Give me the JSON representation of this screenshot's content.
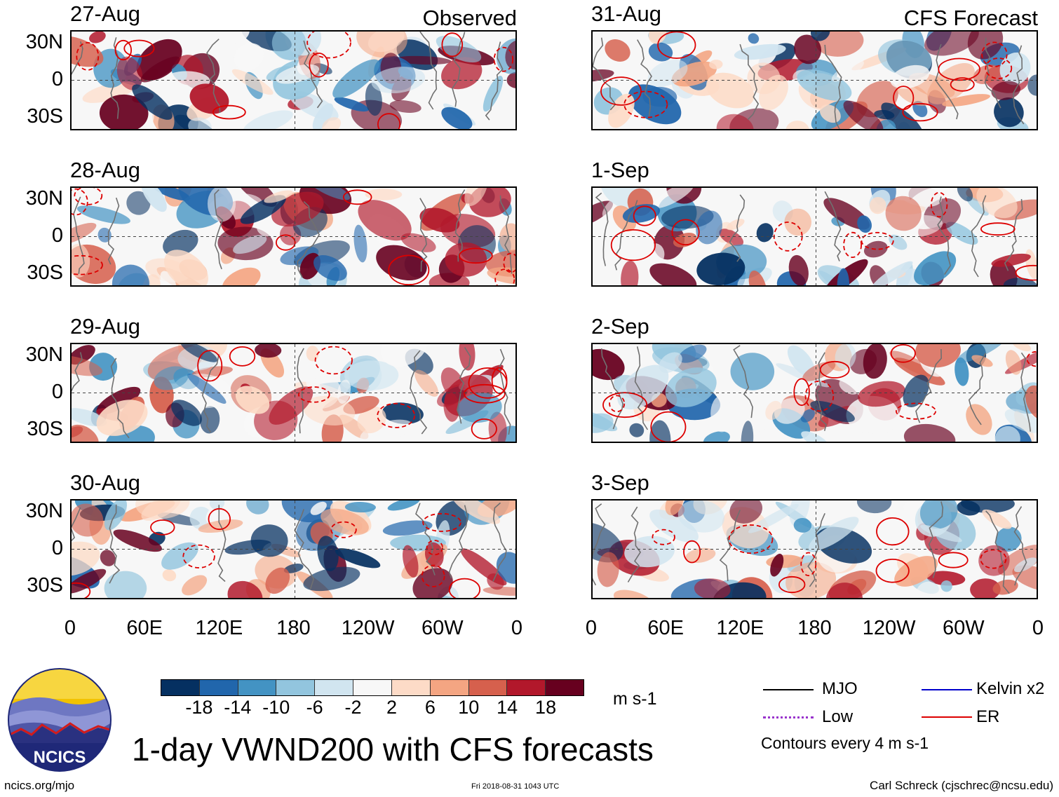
{
  "title": "1-day VWND200 with CFS forecasts",
  "units": "m s-1",
  "footer": {
    "url": "ncics.org/mjo",
    "timestamp": "Fri 2018-08-31 1043 UTC",
    "credit": "Carl Schreck (cjschrec@ncsu.edu)"
  },
  "logo": {
    "text": "NCICS"
  },
  "latitude_labels": [
    "30N",
    "0",
    "30S"
  ],
  "longitude_labels": [
    "0",
    "60E",
    "120E",
    "180",
    "120W",
    "60W",
    "0"
  ],
  "observed": {
    "label": "Observed",
    "dates": [
      "27-Aug",
      "28-Aug",
      "29-Aug",
      "30-Aug"
    ]
  },
  "forecast": {
    "label": "CFS Forecast",
    "dates": [
      "31-Aug",
      "1-Sep",
      "2-Sep",
      "3-Sep"
    ]
  },
  "colorbar": {
    "ticks": [
      "-18",
      "-14",
      "-10",
      "-6",
      "-2",
      "2",
      "6",
      "10",
      "14",
      "18"
    ],
    "colors": [
      "#053061",
      "#2166ac",
      "#4393c3",
      "#92c5de",
      "#d1e5f0",
      "#f7f7f7",
      "#fddbc7",
      "#f4a582",
      "#d6604d",
      "#b2182b",
      "#67001f"
    ]
  },
  "legend": {
    "items": [
      {
        "label": "MJO",
        "color": "#000000",
        "style": "solid"
      },
      {
        "label": "Kelvin x2",
        "color": "#0000cc",
        "style": "solid"
      },
      {
        "label": "Low",
        "color": "#9933cc",
        "style": "dotted"
      },
      {
        "label": "ER",
        "color": "#dd0000",
        "style": "solid"
      }
    ],
    "contour_note": "Contours every 4 m s-1"
  }
}
